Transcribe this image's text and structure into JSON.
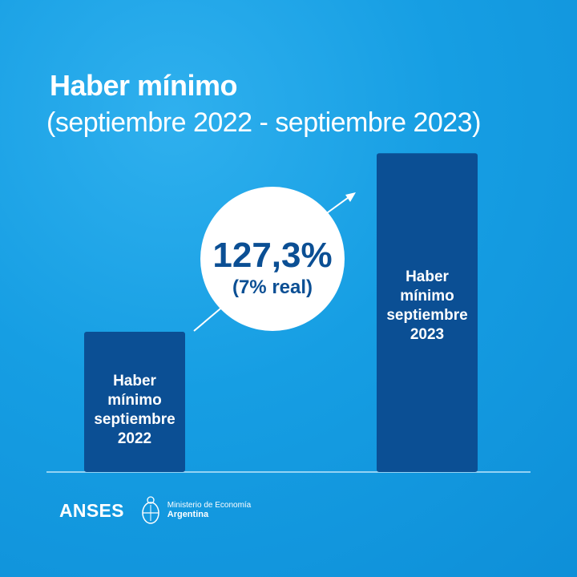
{
  "header": {
    "title": "Haber mínimo",
    "subtitle": "(septiembre 2022 - septiembre 2023)"
  },
  "chart_data": {
    "type": "bar",
    "categories": [
      "Haber mínimo septiembre 2022",
      "Haber mínimo septiembre 2023"
    ],
    "category_label_lines": [
      [
        "Haber",
        "mínimo",
        "septiembre",
        "2022"
      ],
      [
        "Haber",
        "mínimo",
        "septiembre",
        "2023"
      ]
    ],
    "values": [
      100,
      227.3
    ],
    "value_note": "indexed: 2022 = 100, 2023 = +127,3%",
    "annotation": {
      "main": "127,3%",
      "sub": "(7% real)"
    },
    "ylim": [
      0,
      240
    ],
    "grid": false,
    "colors": {
      "bar": "#0b4f94",
      "background": "#169ee3",
      "bubble": "#ffffff"
    }
  },
  "footer": {
    "brand": "ANSES",
    "ministry_line1": "Ministerio de Economía",
    "ministry_line2": "Argentina",
    "seal_icon": "argentina-coat-of-arms-icon"
  }
}
